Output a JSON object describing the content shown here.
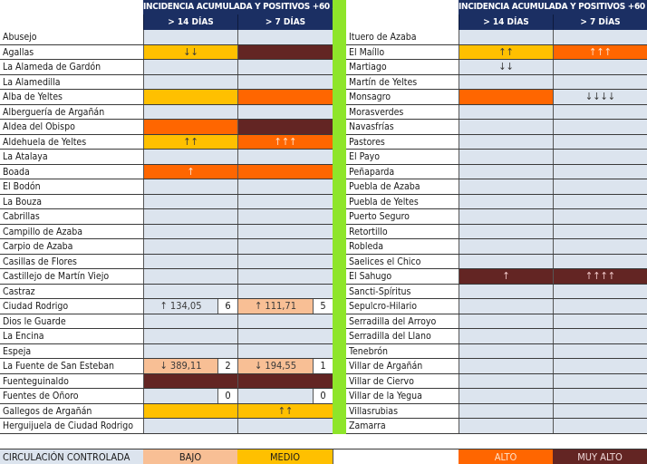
{
  "header": {
    "title": "INCIDENCIA ACUMULADA Y POSITIVOS +60 AÑOS",
    "col1": "> 14 DÍAS",
    "col2": "> 7 DÍAS"
  },
  "colors": {
    "header_bg": "#1b2f63",
    "none": "#dce4ee",
    "bajo": "#f8bf95",
    "medio": "#ffc000",
    "alto": "#ff6600",
    "muy_alto": "#632523",
    "divider": "#8ee52a"
  },
  "left_rows": [
    {
      "name": "Abusejo",
      "c1": {
        "level": "none",
        "text": ""
      },
      "c2": {
        "level": "none",
        "text": ""
      }
    },
    {
      "name": "Agallas",
      "c1": {
        "level": "medio",
        "text": "↓↓"
      },
      "c2": {
        "level": "muy_alto",
        "text": ""
      }
    },
    {
      "name": "La Alameda de Gardón",
      "c1": {
        "level": "none",
        "text": ""
      },
      "c2": {
        "level": "none",
        "text": ""
      }
    },
    {
      "name": "La Alamedilla",
      "c1": {
        "level": "none",
        "text": ""
      },
      "c2": {
        "level": "none",
        "text": ""
      }
    },
    {
      "name": "Alba de Yeltes",
      "c1": {
        "level": "medio",
        "text": ""
      },
      "c2": {
        "level": "alto",
        "text": ""
      }
    },
    {
      "name": "Alberguería de Argañán",
      "c1": {
        "level": "none",
        "text": ""
      },
      "c2": {
        "level": "none",
        "text": ""
      }
    },
    {
      "name": "Aldea del Obispo",
      "c1": {
        "level": "alto",
        "text": ""
      },
      "c2": {
        "level": "muy_alto",
        "text": ""
      }
    },
    {
      "name": "Aldehuela de Yeltes",
      "c1": {
        "level": "medio",
        "text": "↑↑"
      },
      "c2": {
        "level": "alto",
        "text": "↑↑↑"
      }
    },
    {
      "name": "La Atalaya",
      "c1": {
        "level": "none",
        "text": ""
      },
      "c2": {
        "level": "none",
        "text": ""
      }
    },
    {
      "name": "Boada",
      "c1": {
        "level": "alto",
        "text": "↑"
      },
      "c2": {
        "level": "alto",
        "text": ""
      }
    },
    {
      "name": "El Bodón",
      "c1": {
        "level": "none",
        "text": ""
      },
      "c2": {
        "level": "none",
        "text": ""
      }
    },
    {
      "name": "La Bouza",
      "c1": {
        "level": "none",
        "text": ""
      },
      "c2": {
        "level": "none",
        "text": ""
      }
    },
    {
      "name": "Cabrillas",
      "c1": {
        "level": "none",
        "text": ""
      },
      "c2": {
        "level": "none",
        "text": ""
      }
    },
    {
      "name": "Campillo de Azaba",
      "c1": {
        "level": "none",
        "text": ""
      },
      "c2": {
        "level": "none",
        "text": ""
      }
    },
    {
      "name": "Carpio de Azaba",
      "c1": {
        "level": "none",
        "text": ""
      },
      "c2": {
        "level": "none",
        "text": ""
      }
    },
    {
      "name": "Casillas de Flores",
      "c1": {
        "level": "none",
        "text": ""
      },
      "c2": {
        "level": "none",
        "text": ""
      }
    },
    {
      "name": "Castillejo de Martín Viejo",
      "c1": {
        "level": "none",
        "text": ""
      },
      "c2": {
        "level": "none",
        "text": ""
      }
    },
    {
      "name": "Castraz",
      "c1": {
        "level": "none",
        "text": ""
      },
      "c2": {
        "level": "none",
        "text": ""
      }
    },
    {
      "name": "Ciudad Rodrigo",
      "c1": {
        "level": "none",
        "text": "↑ 134,05",
        "count": "6"
      },
      "c2": {
        "level": "bajo",
        "text": "↑ 111,71",
        "count": "5"
      }
    },
    {
      "name": "Dios le Guarde",
      "c1": {
        "level": "none",
        "text": ""
      },
      "c2": {
        "level": "none",
        "text": ""
      }
    },
    {
      "name": "La Encina",
      "c1": {
        "level": "none",
        "text": ""
      },
      "c2": {
        "level": "none",
        "text": ""
      }
    },
    {
      "name": "Espeja",
      "c1": {
        "level": "none",
        "text": ""
      },
      "c2": {
        "level": "none",
        "text": ""
      }
    },
    {
      "name": "La Fuente de San Esteban",
      "c1": {
        "level": "bajo",
        "text": "↓ 389,11",
        "count": "2"
      },
      "c2": {
        "level": "bajo",
        "text": "↓ 194,55",
        "count": "1"
      }
    },
    {
      "name": "Fuenteguinaldo",
      "c1": {
        "level": "muy_alto",
        "text": ""
      },
      "c2": {
        "level": "muy_alto",
        "text": ""
      }
    },
    {
      "name": "Fuentes de Oñoro",
      "c1": {
        "level": "none",
        "text": "",
        "count": "0"
      },
      "c2": {
        "level": "none",
        "text": "",
        "count": "0"
      }
    },
    {
      "name": "Gallegos de Argañán",
      "c1": {
        "level": "medio",
        "text": ""
      },
      "c2": {
        "level": "medio",
        "text": "↑↑"
      }
    },
    {
      "name": "Herguijuela de Ciudad Rodrigo",
      "c1": {
        "level": "none",
        "text": ""
      },
      "c2": {
        "level": "none",
        "text": ""
      }
    }
  ],
  "right_rows": [
    {
      "name": "Ituero de Azaba",
      "c1": {
        "level": "none",
        "text": ""
      },
      "c2": {
        "level": "none",
        "text": ""
      }
    },
    {
      "name": "El Maíllo",
      "c1": {
        "level": "medio",
        "text": "↑↑"
      },
      "c2": {
        "level": "alto",
        "text": "↑↑↑"
      }
    },
    {
      "name": "Martiago",
      "c1": {
        "level": "none",
        "text": "↓↓"
      },
      "c2": {
        "level": "none",
        "text": ""
      }
    },
    {
      "name": "Martín de Yeltes",
      "c1": {
        "level": "none",
        "text": ""
      },
      "c2": {
        "level": "none",
        "text": ""
      }
    },
    {
      "name": "Monsagro",
      "c1": {
        "level": "alto",
        "text": ""
      },
      "c2": {
        "level": "none",
        "text": "↓↓↓↓"
      }
    },
    {
      "name": "Morasverdes",
      "c1": {
        "level": "none",
        "text": ""
      },
      "c2": {
        "level": "none",
        "text": ""
      }
    },
    {
      "name": "Navasfrías",
      "c1": {
        "level": "none",
        "text": ""
      },
      "c2": {
        "level": "none",
        "text": ""
      }
    },
    {
      "name": "Pastores",
      "c1": {
        "level": "none",
        "text": ""
      },
      "c2": {
        "level": "none",
        "text": ""
      }
    },
    {
      "name": "El Payo",
      "c1": {
        "level": "none",
        "text": ""
      },
      "c2": {
        "level": "none",
        "text": ""
      }
    },
    {
      "name": "Peñaparda",
      "c1": {
        "level": "none",
        "text": ""
      },
      "c2": {
        "level": "none",
        "text": ""
      }
    },
    {
      "name": "Puebla de Azaba",
      "c1": {
        "level": "none",
        "text": ""
      },
      "c2": {
        "level": "none",
        "text": ""
      }
    },
    {
      "name": "Puebla de Yeltes",
      "c1": {
        "level": "none",
        "text": ""
      },
      "c2": {
        "level": "none",
        "text": ""
      }
    },
    {
      "name": "Puerto Seguro",
      "c1": {
        "level": "none",
        "text": ""
      },
      "c2": {
        "level": "none",
        "text": ""
      }
    },
    {
      "name": "Retortillo",
      "c1": {
        "level": "none",
        "text": ""
      },
      "c2": {
        "level": "none",
        "text": ""
      }
    },
    {
      "name": "Robleda",
      "c1": {
        "level": "none",
        "text": ""
      },
      "c2": {
        "level": "none",
        "text": ""
      }
    },
    {
      "name": "Saelices el Chico",
      "c1": {
        "level": "none",
        "text": ""
      },
      "c2": {
        "level": "none",
        "text": ""
      }
    },
    {
      "name": "El Sahugo",
      "c1": {
        "level": "muy_alto",
        "text": "↑"
      },
      "c2": {
        "level": "muy_alto",
        "text": "↑↑↑↑"
      }
    },
    {
      "name": "Sancti-Spíritus",
      "c1": {
        "level": "none",
        "text": ""
      },
      "c2": {
        "level": "none",
        "text": ""
      }
    },
    {
      "name": "Sepulcro-Hilario",
      "c1": {
        "level": "none",
        "text": ""
      },
      "c2": {
        "level": "none",
        "text": ""
      }
    },
    {
      "name": "Serradilla del Arroyo",
      "c1": {
        "level": "none",
        "text": ""
      },
      "c2": {
        "level": "none",
        "text": ""
      }
    },
    {
      "name": "Serradilla del Llano",
      "c1": {
        "level": "none",
        "text": ""
      },
      "c2": {
        "level": "none",
        "text": ""
      }
    },
    {
      "name": "Tenebrón",
      "c1": {
        "level": "none",
        "text": ""
      },
      "c2": {
        "level": "none",
        "text": ""
      }
    },
    {
      "name": "Villar de Argañán",
      "c1": {
        "level": "none",
        "text": ""
      },
      "c2": {
        "level": "none",
        "text": ""
      }
    },
    {
      "name": "Villar de Ciervo",
      "c1": {
        "level": "none",
        "text": ""
      },
      "c2": {
        "level": "none",
        "text": ""
      }
    },
    {
      "name": "Villar de la Yegua",
      "c1": {
        "level": "none",
        "text": ""
      },
      "c2": {
        "level": "none",
        "text": ""
      }
    },
    {
      "name": "Villasrubias",
      "c1": {
        "level": "none",
        "text": ""
      },
      "c2": {
        "level": "none",
        "text": ""
      }
    },
    {
      "name": "Zamarra",
      "c1": {
        "level": "none",
        "text": ""
      },
      "c2": {
        "level": "none",
        "text": ""
      }
    }
  ],
  "legend": {
    "controlled": "CIRCULACIÓN CONTROLADA",
    "bajo": "BAJO",
    "medio": "MEDIO",
    "alto": "ALTO",
    "muy_alto": "MUY ALTO"
  }
}
